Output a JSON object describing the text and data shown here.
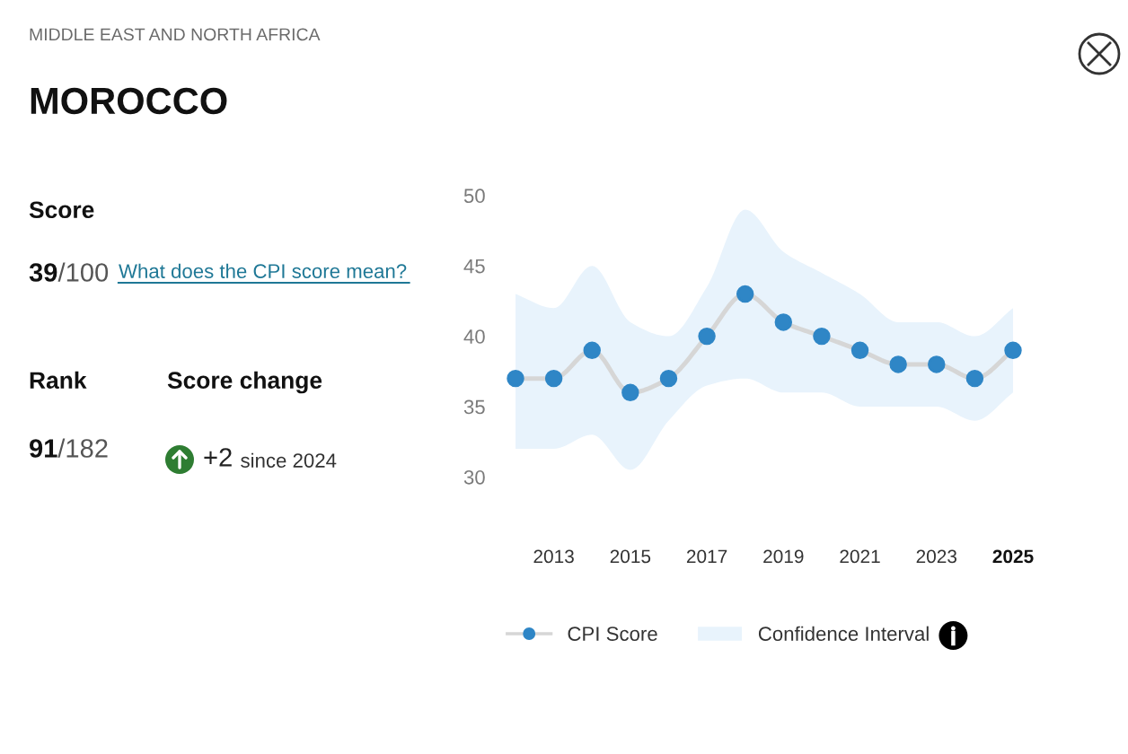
{
  "chart_data": [
    {
      "type": "other",
      "title": "MOROCCO",
      "subtitle": "MIDDLE EAST AND NORTH AFRICA",
      "annotations": [
        "Score",
        "39/100",
        "What does the CPI score mean?",
        "Rank",
        "91/182",
        "Score change",
        "+2 since 2024"
      ]
    },
    {
      "type": "line",
      "categories": [
        null,
        "2013",
        null,
        "2015",
        null,
        "2017",
        null,
        "2019",
        null,
        "2021",
        null,
        "2023",
        null,
        "2025"
      ],
      "series": [
        {
          "name": "CPI Score",
          "type": "line",
          "color": "#2f86c6",
          "values": [
            37,
            37,
            39,
            36,
            37,
            40,
            43,
            41,
            40,
            39,
            38,
            38,
            37,
            39
          ],
          "lower": [
            32,
            32,
            33,
            30.5,
            34,
            36.5,
            37,
            36,
            36,
            35,
            35,
            35,
            34,
            36
          ],
          "upper": [
            43,
            42,
            45,
            41,
            40,
            43.5,
            49,
            46,
            44.5,
            43,
            41,
            41,
            40,
            42
          ]
        }
      ],
      "annotations": [
        "Confidence Interval"
      ],
      "ylim": [
        30,
        50
      ],
      "yticks": [
        30,
        35,
        40,
        45,
        50
      ],
      "marker": "circle",
      "legend": "bottom"
    }
  ]
}
